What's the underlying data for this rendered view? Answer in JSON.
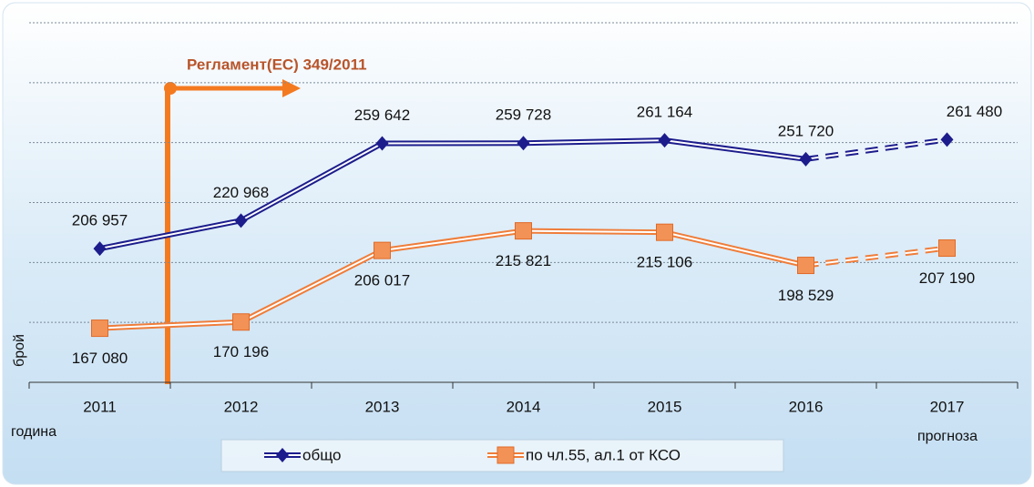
{
  "chart_data": {
    "type": "line",
    "annotation": "Регламент(ЕС) 349/2011",
    "y_label": "брой",
    "x_label": "година",
    "forecast_label": "прогноза",
    "categories": [
      "2011",
      "2012",
      "2013",
      "2014",
      "2015",
      "2016",
      "2017"
    ],
    "series": [
      {
        "name": "общо",
        "color": "#1c1c8c",
        "marker": "diamond",
        "values": [
          206957,
          220968,
          259642,
          259728,
          261164,
          251720,
          261480
        ],
        "value_labels": [
          "206 957",
          "220 968",
          "259 642",
          "259 728",
          "261 164",
          "251 720",
          "261 480"
        ]
      },
      {
        "name": "по чл.55, ал.1 от КСО",
        "color": "#ef7d3a",
        "marker": "square",
        "values": [
          167080,
          170196,
          206017,
          215821,
          215106,
          198529,
          207190
        ],
        "value_labels": [
          "167 080",
          "170 196",
          "206 017",
          "215 821",
          "215 106",
          "198 529",
          "207 190"
        ]
      }
    ],
    "ylim": [
      140000,
      320000
    ],
    "yticks": [
      140000,
      170000,
      200000,
      230000,
      260000,
      290000,
      320000
    ],
    "grid": true
  }
}
